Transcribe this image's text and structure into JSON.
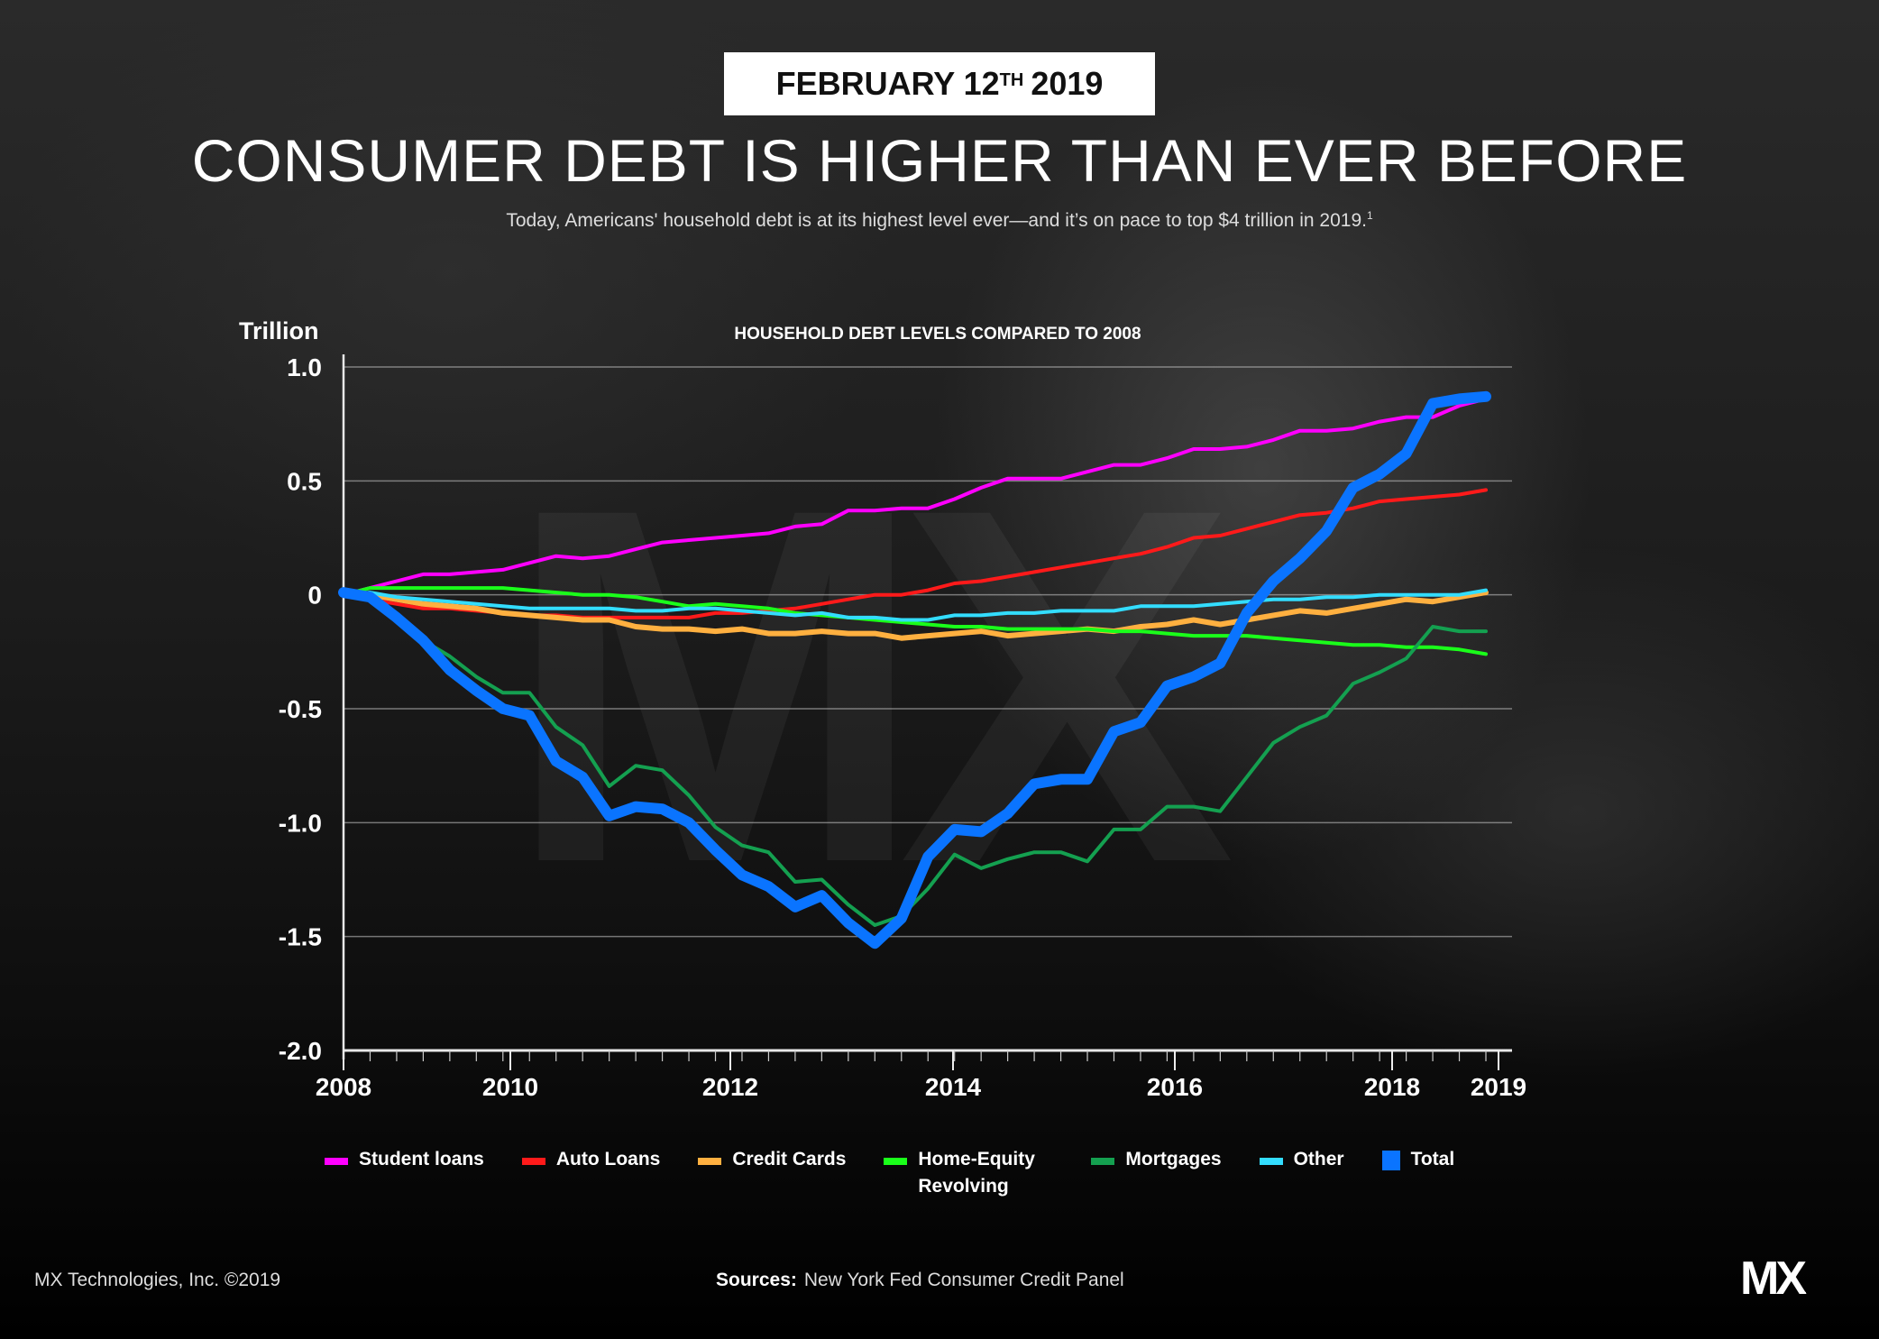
{
  "header": {
    "date_main": "FEBRUARY 12",
    "date_suffix": "TH",
    "date_year": "2019",
    "title": "CONSUMER DEBT IS HIGHER THAN EVER BEFORE",
    "subtitle": "Today, Americans' household debt is at its highest level ever—and it’s on pace to top $4 trillion in 2019.",
    "subtitle_footnote": "1"
  },
  "watermark": "MX",
  "footer": {
    "copyright": "MX Technologies, Inc. ©2019",
    "sources_label": "Sources:",
    "sources_text": "New York Fed Consumer Credit Panel",
    "logo": "MX",
    "logo_mark": "."
  },
  "chart_data": {
    "type": "line",
    "title": "HOUSEHOLD DEBT LEVELS COMPARED TO 2008",
    "ylabel": "Trillion",
    "xlabel": "",
    "ylim": [
      -2.0,
      1.0
    ],
    "yticks": [
      1.0,
      0.5,
      0,
      -0.5,
      -1.0,
      -1.5,
      -2.0
    ],
    "ytick_labels": [
      "1.0",
      "0.5",
      "0",
      "-0.5",
      "-1.0",
      "-1.5",
      "-2.0"
    ],
    "xtick_labels": [
      "2008",
      "2010",
      "2012",
      "2014",
      "2016",
      "2018",
      "2019"
    ],
    "xtick_years": [
      2008,
      2010,
      2012,
      2014,
      2016,
      2018,
      2019
    ],
    "x_start": 2008.0,
    "x_end": 2018.75,
    "grid": true,
    "legend_position": "bottom",
    "series": [
      {
        "name": "Student loans",
        "color": "#ff00ff",
        "width": "thin",
        "values": [
          0.0,
          0.03,
          0.06,
          0.09,
          0.09,
          0.1,
          0.11,
          0.14,
          0.17,
          0.16,
          0.17,
          0.2,
          0.23,
          0.24,
          0.25,
          0.26,
          0.27,
          0.3,
          0.31,
          0.37,
          0.37,
          0.38,
          0.38,
          0.42,
          0.47,
          0.51,
          0.51,
          0.51,
          0.54,
          0.57,
          0.57,
          0.6,
          0.64,
          0.64,
          0.65,
          0.68,
          0.72,
          0.72,
          0.73,
          0.76,
          0.78,
          0.78,
          0.83,
          0.86
        ]
      },
      {
        "name": "Auto Loans",
        "color": "#ff1a1a",
        "width": "thin",
        "values": [
          0.0,
          -0.02,
          -0.04,
          -0.06,
          -0.06,
          -0.07,
          -0.08,
          -0.09,
          -0.09,
          -0.1,
          -0.1,
          -0.1,
          -0.1,
          -0.1,
          -0.08,
          -0.08,
          -0.07,
          -0.06,
          -0.04,
          -0.02,
          0.0,
          0.0,
          0.02,
          0.05,
          0.06,
          0.08,
          0.1,
          0.12,
          0.14,
          0.16,
          0.18,
          0.21,
          0.25,
          0.26,
          0.29,
          0.32,
          0.35,
          0.36,
          0.38,
          0.41,
          0.42,
          0.43,
          0.44,
          0.46
        ]
      },
      {
        "name": "Credit Cards",
        "color": "#ffb040",
        "width": "medium",
        "values": [
          0.0,
          0.0,
          -0.02,
          -0.04,
          -0.05,
          -0.06,
          -0.08,
          -0.09,
          -0.1,
          -0.11,
          -0.11,
          -0.14,
          -0.15,
          -0.15,
          -0.16,
          -0.15,
          -0.17,
          -0.17,
          -0.16,
          -0.17,
          -0.17,
          -0.19,
          -0.18,
          -0.17,
          -0.16,
          -0.18,
          -0.17,
          -0.16,
          -0.15,
          -0.16,
          -0.14,
          -0.13,
          -0.11,
          -0.13,
          -0.11,
          -0.09,
          -0.07,
          -0.08,
          -0.06,
          -0.04,
          -0.02,
          -0.03,
          -0.01,
          0.01
        ]
      },
      {
        "name": "Home-Equity Revolving",
        "color": "#1aff1a",
        "width": "thin",
        "values": [
          0.0,
          0.03,
          0.03,
          0.03,
          0.03,
          0.03,
          0.03,
          0.02,
          0.01,
          0.0,
          0.0,
          -0.01,
          -0.03,
          -0.05,
          -0.04,
          -0.05,
          -0.06,
          -0.08,
          -0.09,
          -0.1,
          -0.11,
          -0.12,
          -0.13,
          -0.14,
          -0.14,
          -0.15,
          -0.15,
          -0.15,
          -0.15,
          -0.16,
          -0.16,
          -0.17,
          -0.18,
          -0.18,
          -0.18,
          -0.19,
          -0.2,
          -0.21,
          -0.22,
          -0.22,
          -0.23,
          -0.23,
          -0.24,
          -0.26
        ]
      },
      {
        "name": "Mortgages",
        "color": "#14a050",
        "width": "thin",
        "values": [
          0.0,
          -0.02,
          -0.1,
          -0.2,
          -0.27,
          -0.36,
          -0.43,
          -0.43,
          -0.58,
          -0.66,
          -0.84,
          -0.75,
          -0.77,
          -0.88,
          -1.02,
          -1.1,
          -1.13,
          -1.26,
          -1.25,
          -1.36,
          -1.45,
          -1.41,
          -1.29,
          -1.14,
          -1.2,
          -1.16,
          -1.13,
          -1.13,
          -1.17,
          -1.03,
          -1.03,
          -0.93,
          -0.93,
          -0.95,
          -0.8,
          -0.65,
          -0.58,
          -0.53,
          -0.39,
          -0.34,
          -0.28,
          -0.14,
          -0.16,
          -0.16
        ]
      },
      {
        "name": "Other",
        "color": "#33ddff",
        "width": "thin",
        "values": [
          0.0,
          0.01,
          -0.01,
          -0.02,
          -0.03,
          -0.04,
          -0.05,
          -0.06,
          -0.06,
          -0.06,
          -0.06,
          -0.07,
          -0.07,
          -0.06,
          -0.06,
          -0.07,
          -0.08,
          -0.09,
          -0.08,
          -0.1,
          -0.1,
          -0.11,
          -0.11,
          -0.09,
          -0.09,
          -0.08,
          -0.08,
          -0.07,
          -0.07,
          -0.07,
          -0.05,
          -0.05,
          -0.05,
          -0.04,
          -0.03,
          -0.02,
          -0.02,
          -0.01,
          -0.01,
          0.0,
          0.0,
          0.0,
          0.0,
          0.02
        ]
      },
      {
        "name": "Total",
        "color": "#0a74ff",
        "width": "thick",
        "values": [
          0.01,
          -0.01,
          -0.1,
          -0.2,
          -0.33,
          -0.42,
          -0.5,
          -0.53,
          -0.73,
          -0.8,
          -0.97,
          -0.93,
          -0.94,
          -1.0,
          -1.12,
          -1.23,
          -1.28,
          -1.37,
          -1.32,
          -1.44,
          -1.53,
          -1.42,
          -1.15,
          -1.03,
          -1.04,
          -0.96,
          -0.83,
          -0.81,
          -0.81,
          -0.6,
          -0.56,
          -0.4,
          -0.36,
          -0.3,
          -0.08,
          0.06,
          0.16,
          0.28,
          0.47,
          0.53,
          0.62,
          0.84,
          0.86,
          0.87
        ]
      }
    ]
  }
}
